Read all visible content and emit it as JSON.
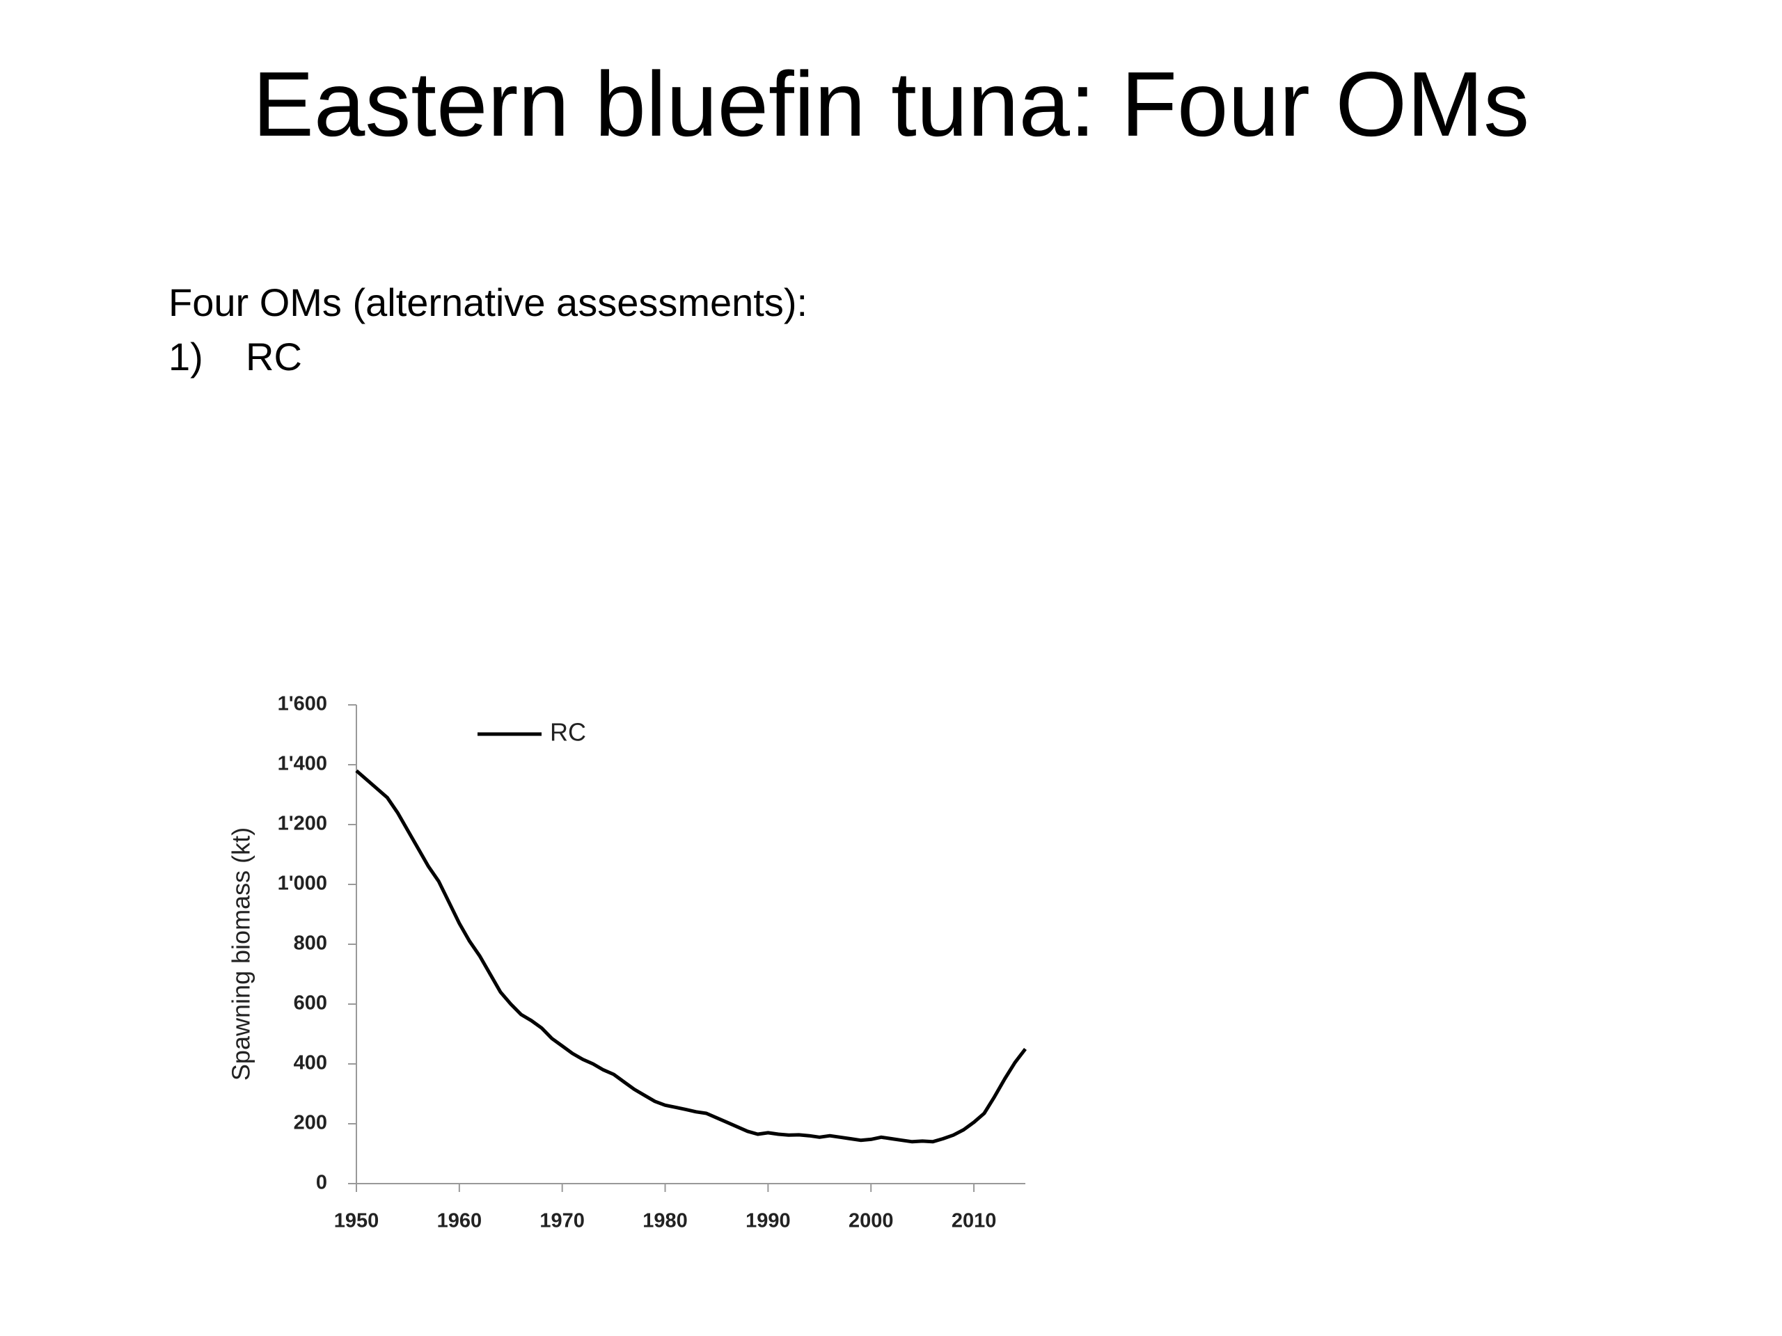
{
  "slide": {
    "title": "Eastern bluefin tuna: Four OMs",
    "intro": "Four OMs (alternative assessments):",
    "items": [
      {
        "number": "1)",
        "text": "RC"
      }
    ]
  },
  "chart_data": {
    "type": "line",
    "y_label": "Spawning biomass (kt)",
    "x": [
      1950,
      1951,
      1952,
      1953,
      1954,
      1955,
      1956,
      1957,
      1958,
      1959,
      1960,
      1961,
      1962,
      1963,
      1964,
      1965,
      1966,
      1967,
      1968,
      1969,
      1970,
      1971,
      1972,
      1973,
      1974,
      1975,
      1976,
      1977,
      1978,
      1979,
      1980,
      1981,
      1982,
      1983,
      1984,
      1985,
      1986,
      1987,
      1988,
      1989,
      1990,
      1991,
      1992,
      1993,
      1994,
      1995,
      1996,
      1997,
      1998,
      1999,
      2000,
      2001,
      2002,
      2003,
      2004,
      2005,
      2006,
      2007,
      2008,
      2009,
      2010,
      2011,
      2012,
      2013,
      2014,
      2015
    ],
    "series": [
      {
        "name": "RC",
        "color": "#000000",
        "values": [
          1380,
          1350,
          1320,
          1290,
          1240,
          1180,
          1120,
          1060,
          1010,
          940,
          870,
          810,
          760,
          700,
          640,
          600,
          565,
          545,
          520,
          485,
          460,
          435,
          415,
          400,
          380,
          365,
          340,
          315,
          295,
          275,
          262,
          255,
          248,
          240,
          235,
          220,
          205,
          190,
          175,
          165,
          170,
          165,
          162,
          163,
          160,
          155,
          160,
          155,
          150,
          145,
          148,
          155,
          150,
          145,
          140,
          142,
          140,
          150,
          162,
          180,
          205,
          235,
          290,
          350,
          405,
          450
        ]
      }
    ],
    "xlim": [
      1950,
      2015
    ],
    "xticks": [
      1950,
      1960,
      1970,
      1980,
      1990,
      2000,
      2010
    ],
    "ylim": [
      0,
      1600
    ],
    "yticks": [
      0,
      200,
      400,
      600,
      800,
      {
        "value": 1000,
        "label": "1'000"
      },
      {
        "value": 1200,
        "label": "1'200"
      },
      {
        "value": 1400,
        "label": "1'400"
      },
      {
        "value": 1600,
        "label": "1'600"
      }
    ],
    "grid": false,
    "legend": "top"
  }
}
